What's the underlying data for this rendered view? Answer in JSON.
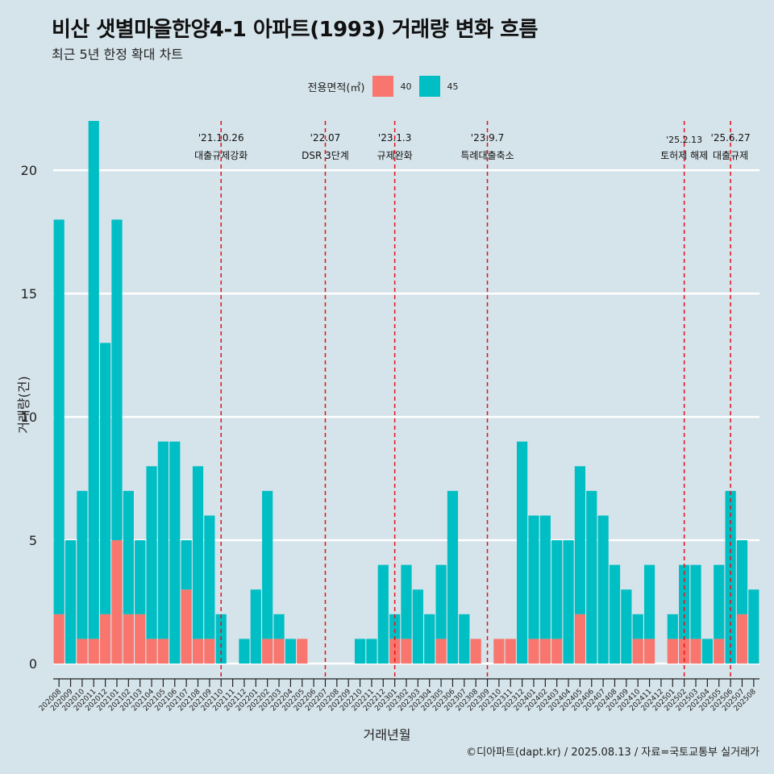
{
  "chart_data": {
    "type": "bar",
    "title": "비산 샛별마을한양4-1 아파트(1993) 거래량 변화 흐름",
    "subtitle": "최근 5년 한정 확대 차트",
    "xlabel": "거래년월",
    "ylabel": "거래량(건)",
    "caption": "©디아파트(dapt.kr) / 2025.08.13 / 자료=국토교통부 실거래가",
    "legend_title": "전용면적(㎡)",
    "legend_position": "top",
    "ylim": [
      0,
      22
    ],
    "yticks": [
      0,
      5,
      10,
      15,
      20
    ],
    "grid": true,
    "categories": [
      "202008",
      "202009",
      "202010",
      "202011",
      "202012",
      "202101",
      "202102",
      "202103",
      "202104",
      "202105",
      "202106",
      "202107",
      "202108",
      "202109",
      "202110",
      "202111",
      "202112",
      "202201",
      "202202",
      "202203",
      "202204",
      "202205",
      "202206",
      "202207",
      "202208",
      "202209",
      "202210",
      "202211",
      "202212",
      "202301",
      "202302",
      "202303",
      "202304",
      "202305",
      "202306",
      "202307",
      "202308",
      "202309",
      "202310",
      "202311",
      "202312",
      "202401",
      "202402",
      "202403",
      "202404",
      "202405",
      "202406",
      "202407",
      "202408",
      "202409",
      "202410",
      "202411",
      "202412",
      "202501",
      "202502",
      "202503",
      "202504",
      "202505",
      "202506",
      "202507",
      "202508"
    ],
    "series": [
      {
        "name": "40",
        "color": "#f8766d",
        "values": [
          2,
          0,
          1,
          1,
          2,
          5,
          2,
          2,
          1,
          1,
          0,
          3,
          1,
          1,
          0,
          0,
          0,
          0,
          1,
          1,
          0,
          1,
          0,
          0,
          0,
          0,
          0,
          0,
          0,
          1,
          1,
          0,
          0,
          1,
          0,
          0,
          1,
          0,
          1,
          1,
          0,
          1,
          1,
          1,
          0,
          2,
          0,
          0,
          0,
          0,
          1,
          1,
          0,
          1,
          1,
          1,
          0,
          1,
          0,
          2,
          0
        ]
      },
      {
        "name": "45",
        "color": "#00bfc4",
        "values": [
          16,
          5,
          6,
          21,
          11,
          13,
          5,
          3,
          7,
          8,
          9,
          2,
          7,
          5,
          2,
          0,
          1,
          3,
          6,
          1,
          1,
          0,
          0,
          0,
          0,
          0,
          1,
          1,
          4,
          1,
          3,
          3,
          2,
          3,
          7,
          2,
          0,
          0,
          0,
          0,
          9,
          5,
          5,
          4,
          5,
          6,
          7,
          6,
          4,
          3,
          1,
          3,
          0,
          1,
          3,
          3,
          1,
          3,
          7,
          3,
          3
        ]
      }
    ],
    "events": [
      {
        "x": "202110",
        "date": "'21.10.26",
        "label": "대출규제강화"
      },
      {
        "x": "202207",
        "date": "'22.07",
        "label": "DSR 3단계"
      },
      {
        "x": "202301",
        "date": "'23.1.3",
        "label": "규제완화"
      },
      {
        "x": "202309",
        "date": "'23.9.7",
        "label": "특례대출축소"
      },
      {
        "x": "202502",
        "date": "'25.2.13",
        "label": "토허제 해제"
      },
      {
        "x": "202506",
        "date": "'25.6.27",
        "label": "대출규제"
      }
    ]
  }
}
